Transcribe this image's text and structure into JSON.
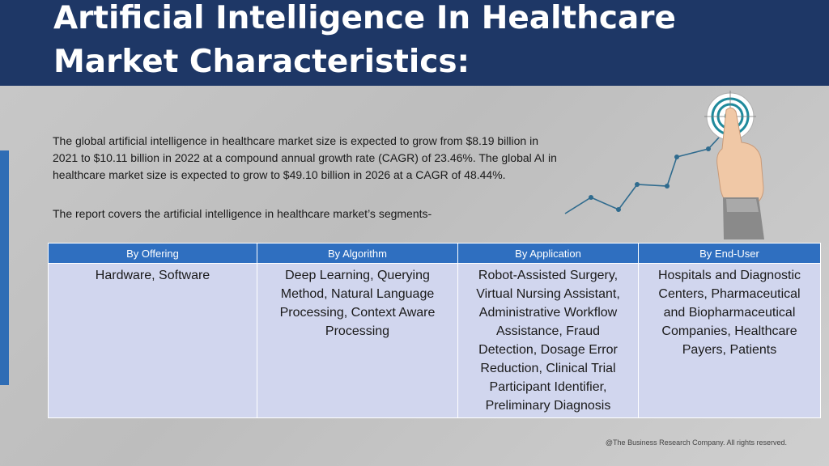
{
  "title_line1": "Artificial Intelligence In Healthcare",
  "title_line2": "Market Characteristics:",
  "paragraph1": "The global artificial intelligence in healthcare market size is expected to grow from $8.19 billion in 2021 to $10.11 billion in 2022 at a compound annual growth rate (CAGR) of 23.46%. The global AI in healthcare market size is expected to grow to $49.10 billion in 2026 at a CAGR of 48.44%.",
  "paragraph2": "The report covers the artificial intelligence in healthcare market’s segments-",
  "table": {
    "headers": [
      "By Offering",
      "By Algorithm",
      "By Application",
      "By End-User"
    ],
    "cells": [
      "Hardware, Software",
      "Deep Learning, Querying Method, Natural Language Processing, Context Aware Processing",
      "Robot-Assisted Surgery, Virtual Nursing Assistant, Administrative Workflow Assistance, Fraud Detection, Dosage Error Reduction, Clinical Trial Participant Identifier, Preliminary Diagnosis",
      "Hospitals and Diagnostic Centers, Pharmaceutical and Biopharmaceutical Companies, Healthcare Payers, Patients"
    ]
  },
  "footer": "@The Business Research Company. All rights reserved.",
  "colors": {
    "header_bg": "#1e3766",
    "table_header_bg": "#2f6fc0",
    "table_cell_bg": "#d1d6ee",
    "accent_bar": "#2f6db5"
  },
  "illustration": {
    "icons": [
      "growth-line-chart-icon",
      "target-icon",
      "pointing-hand-icon"
    ]
  }
}
